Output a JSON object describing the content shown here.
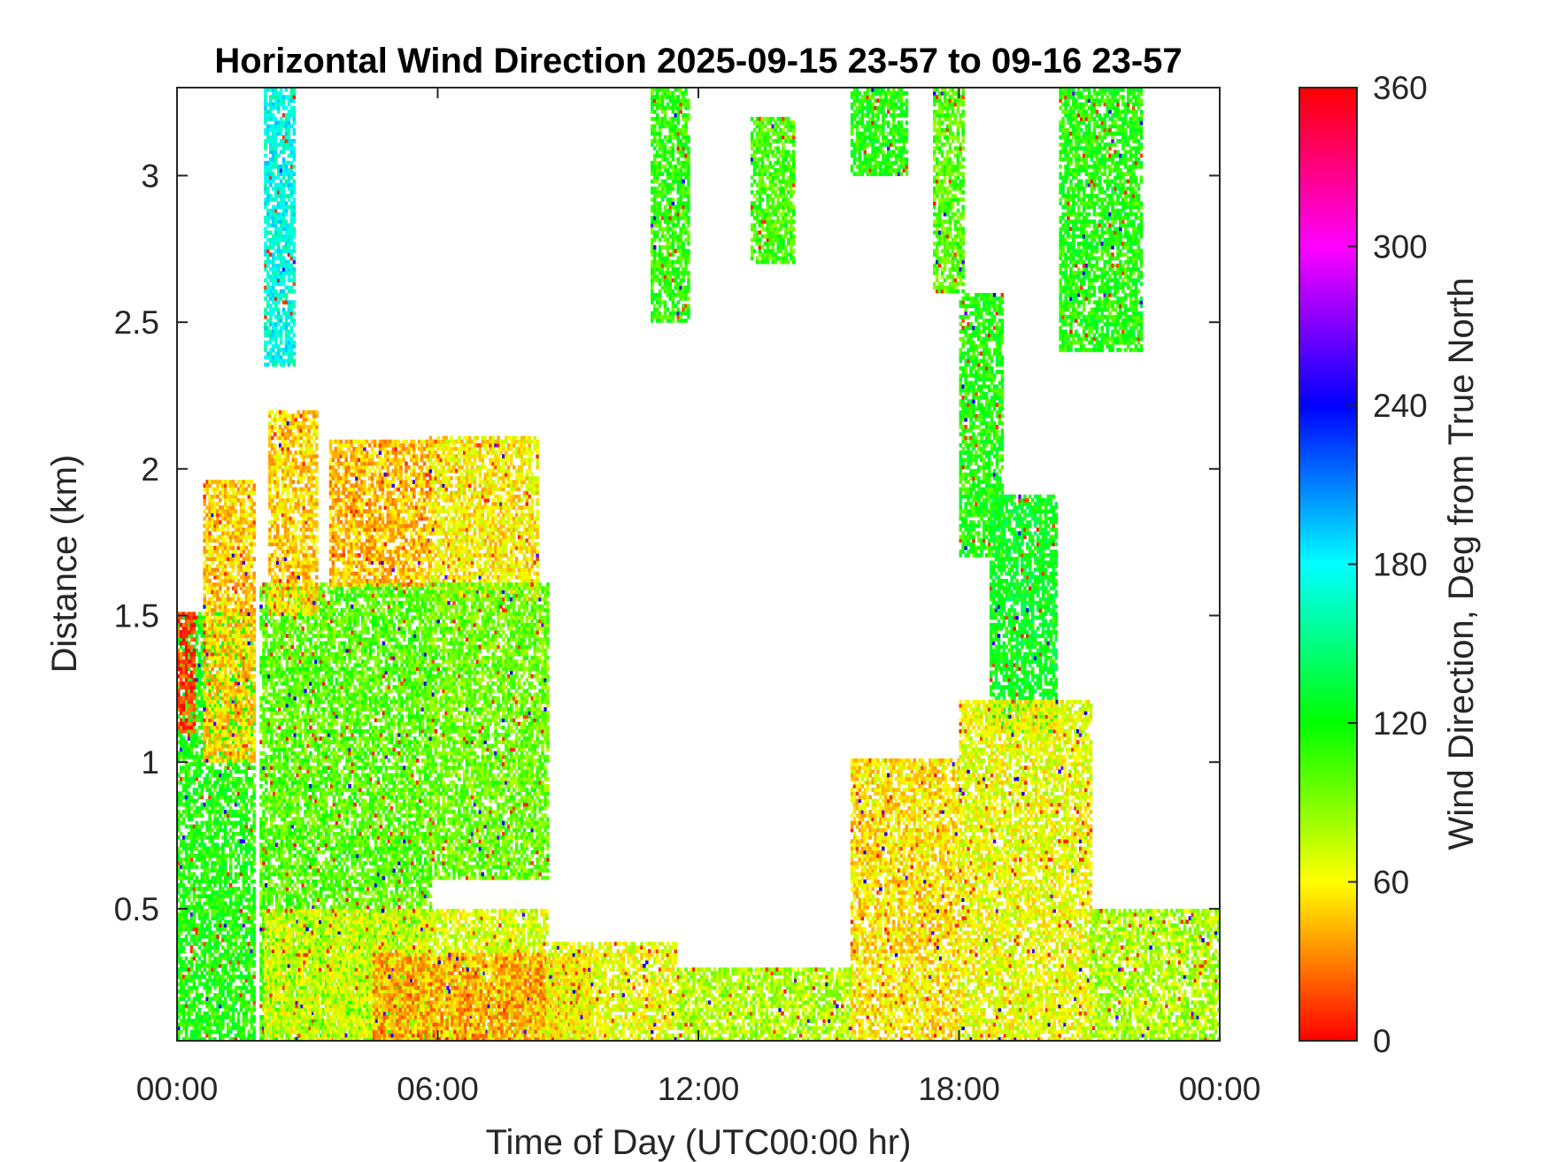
{
  "chart_data": {
    "type": "heatmap",
    "title": "Horizontal Wind Direction 2025-09-15 23-57 to 09-16 23-57",
    "xlabel": "Time of Day (UTC00:00 hr)",
    "ylabel": "Distance (km)",
    "x_ticks": [
      "00:00",
      "06:00",
      "12:00",
      "18:00",
      "00:00"
    ],
    "x_tick_hours": [
      0,
      6,
      12,
      18,
      24
    ],
    "xlim_hours": [
      0,
      24
    ],
    "y_ticks": [
      "0.5",
      "1",
      "1.5",
      "2",
      "2.5",
      "3"
    ],
    "y_tick_values": [
      0.5,
      1,
      1.5,
      2,
      2.5,
      3
    ],
    "ylim_km": [
      0.05,
      3.3
    ],
    "colorbar": {
      "label": "Wind Direction, Deg from True North",
      "ticks": [
        "0",
        "60",
        "120",
        "180",
        "240",
        "300",
        "360"
      ],
      "tick_values": [
        0,
        60,
        120,
        180,
        240,
        300,
        360
      ],
      "range": [
        0,
        360
      ],
      "colormap": "hsv"
    },
    "regions": [
      {
        "t": [
          0.0,
          1.8
        ],
        "z": [
          0.05,
          1.5
        ],
        "deg": 115
      },
      {
        "t": [
          0.6,
          1.8
        ],
        "z": [
          1.0,
          1.95
        ],
        "deg": 50
      },
      {
        "t": [
          0.0,
          0.4
        ],
        "z": [
          1.1,
          1.5
        ],
        "deg": 15
      },
      {
        "t": [
          1.9,
          5.8
        ],
        "z": [
          0.05,
          1.6
        ],
        "deg": 100
      },
      {
        "t": [
          2.1,
          3.2
        ],
        "z": [
          1.5,
          2.2
        ],
        "deg": 50
      },
      {
        "t": [
          3.5,
          5.8
        ],
        "z": [
          1.6,
          2.1
        ],
        "deg": 45
      },
      {
        "t": [
          5.8,
          8.3
        ],
        "z": [
          1.55,
          2.1
        ],
        "deg": 58
      },
      {
        "t": [
          5.8,
          8.5
        ],
        "z": [
          0.6,
          1.6
        ],
        "deg": 95
      },
      {
        "t": [
          2.0,
          8.5
        ],
        "z": [
          0.05,
          0.5
        ],
        "deg": 70
      },
      {
        "t": [
          4.5,
          9.5
        ],
        "z": [
          0.05,
          0.35
        ],
        "deg": 40
      },
      {
        "t": [
          8.5,
          11.5
        ],
        "z": [
          0.05,
          0.38
        ],
        "deg": 65
      },
      {
        "t": [
          2.0,
          2.7
        ],
        "z": [
          2.35,
          3.3
        ],
        "deg": 175
      },
      {
        "t": [
          10.9,
          11.8
        ],
        "z": [
          2.5,
          3.3
        ],
        "deg": 110
      },
      {
        "t": [
          13.2,
          14.2
        ],
        "z": [
          2.7,
          3.2
        ],
        "deg": 105
      },
      {
        "t": [
          15.5,
          16.8
        ],
        "z": [
          3.0,
          3.3
        ],
        "deg": 115
      },
      {
        "t": [
          17.4,
          18.1
        ],
        "z": [
          2.6,
          3.3
        ],
        "deg": 100
      },
      {
        "t": [
          18.0,
          19.0
        ],
        "z": [
          1.7,
          2.6
        ],
        "deg": 115
      },
      {
        "t": [
          18.7,
          20.2
        ],
        "z": [
          1.1,
          1.9
        ],
        "deg": 125
      },
      {
        "t": [
          20.3,
          22.2
        ],
        "z": [
          2.4,
          3.3
        ],
        "deg": 115
      },
      {
        "t": [
          15.5,
          18.0
        ],
        "z": [
          0.05,
          1.0
        ],
        "deg": 55
      },
      {
        "t": [
          18.0,
          21.0
        ],
        "z": [
          0.05,
          1.2
        ],
        "deg": 65
      },
      {
        "t": [
          21.0,
          24.0
        ],
        "z": [
          0.05,
          0.5
        ],
        "deg": 80
      },
      {
        "t": [
          11.5,
          15.5
        ],
        "z": [
          0.05,
          0.3
        ],
        "deg": 80
      }
    ]
  }
}
